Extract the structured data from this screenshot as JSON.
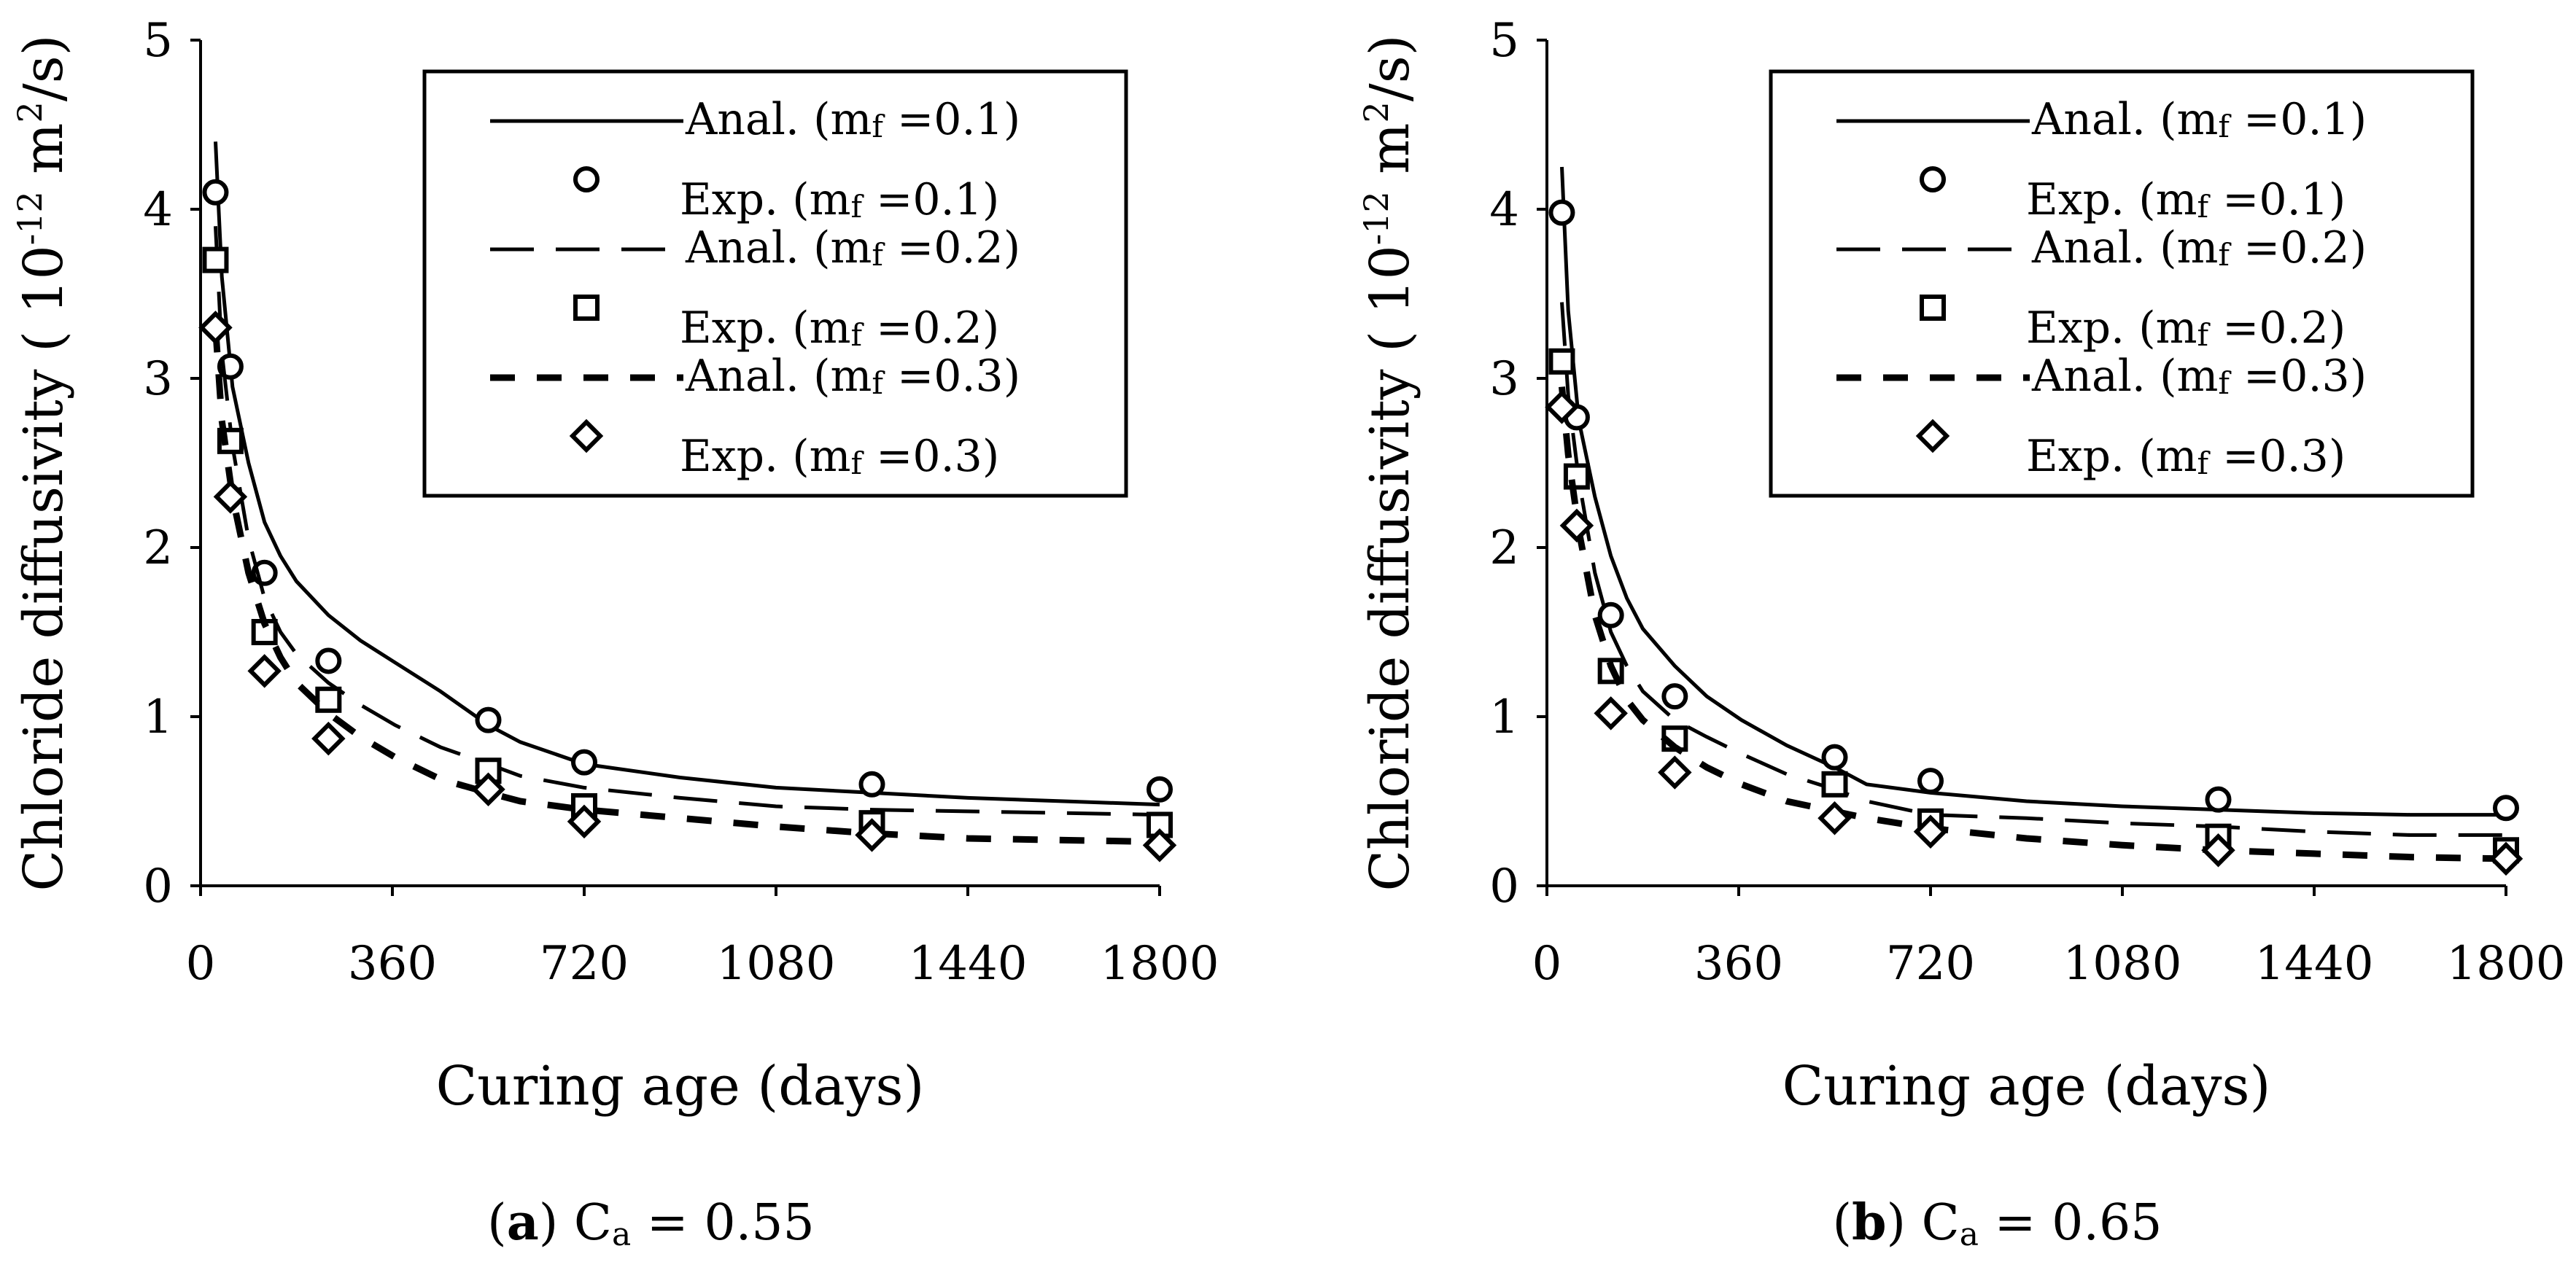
{
  "colors": {
    "ink": "#000000",
    "background": "#ffffff"
  },
  "chart_data": [
    {
      "type": "line",
      "title": "",
      "caption": {
        "letter": "a",
        "prefix": "(",
        "close": ")",
        "text": " C",
        "sub": "a",
        "value": " = 0.55"
      },
      "xlabel": "Curing age (days)",
      "ylabel_main": "Chloride diffusivity (",
      "ylabel_unit_10": "10",
      "ylabel_unit_exp": "-12",
      "ylabel_unit_m": " m",
      "ylabel_unit_sq": "2",
      "ylabel_unit_end": "/s)",
      "xlim": [
        0,
        1800
      ],
      "ylim": [
        0,
        5
      ],
      "xticks": [
        0,
        360,
        720,
        1080,
        1440,
        1800
      ],
      "yticks": [
        0,
        1,
        2,
        3,
        4,
        5
      ],
      "legend_position": "top-right",
      "series": [
        {
          "name": "Anal. (mf =0.1)",
          "label_main": "Anal. (m",
          "label_sub": "f",
          "label_end": " =0.1)",
          "kind": "line",
          "dash": "solid",
          "x": [
            28,
            40,
            60,
            90,
            120,
            150,
            180,
            240,
            300,
            365,
            450,
            540,
            600,
            720,
            900,
            1080,
            1260,
            1440,
            1620,
            1800
          ],
          "y": [
            4.4,
            3.6,
            2.95,
            2.5,
            2.15,
            1.95,
            1.8,
            1.6,
            1.45,
            1.32,
            1.15,
            0.95,
            0.85,
            0.72,
            0.64,
            0.58,
            0.55,
            0.52,
            0.5,
            0.48
          ]
        },
        {
          "name": "Exp. (mf =0.1)",
          "label_main": "Exp. (m",
          "label_sub": "f",
          "label_end": " =0.1)",
          "kind": "marker",
          "marker": "circle",
          "x": [
            28,
            56,
            120,
            240,
            540,
            720,
            1260,
            1800
          ],
          "y": [
            4.1,
            3.07,
            1.85,
            1.33,
            0.98,
            0.73,
            0.6,
            0.57
          ]
        },
        {
          "name": "Anal. (mf =0.2)",
          "label_main": "Anal. (m",
          "label_sub": "f",
          "label_end": " =0.2)",
          "kind": "line",
          "dash": "long",
          "x": [
            28,
            40,
            60,
            90,
            120,
            150,
            180,
            240,
            300,
            365,
            450,
            540,
            600,
            720,
            900,
            1080,
            1260,
            1440,
            1620,
            1800
          ],
          "y": [
            3.9,
            3.15,
            2.6,
            2.05,
            1.7,
            1.5,
            1.37,
            1.2,
            1.07,
            0.95,
            0.82,
            0.72,
            0.65,
            0.58,
            0.52,
            0.47,
            0.45,
            0.44,
            0.43,
            0.42
          ]
        },
        {
          "name": "Exp. (mf =0.2)",
          "label_main": "Exp. (m",
          "label_sub": "f",
          "label_end": " =0.2)",
          "kind": "marker",
          "marker": "square",
          "x": [
            28,
            56,
            120,
            240,
            540,
            720,
            1260,
            1800
          ],
          "y": [
            3.7,
            2.63,
            1.5,
            1.1,
            0.68,
            0.47,
            0.37,
            0.36
          ]
        },
        {
          "name": "Anal. (mf =0.3)",
          "label_main": "Anal. (m",
          "label_sub": "f",
          "label_end": " =0.3)",
          "kind": "line",
          "dash": "short",
          "x": [
            28,
            40,
            60,
            90,
            120,
            150,
            180,
            240,
            300,
            365,
            450,
            540,
            600,
            720,
            900,
            1080,
            1260,
            1440,
            1620,
            1800
          ],
          "y": [
            3.3,
            2.75,
            2.3,
            1.85,
            1.55,
            1.35,
            1.2,
            1.02,
            0.88,
            0.76,
            0.63,
            0.55,
            0.5,
            0.45,
            0.4,
            0.35,
            0.31,
            0.28,
            0.27,
            0.26
          ]
        },
        {
          "name": "Exp. (mf =0.3)",
          "label_main": "Exp. (m",
          "label_sub": "f",
          "label_end": " =0.3)",
          "kind": "marker",
          "marker": "diamond",
          "x": [
            28,
            56,
            120,
            240,
            540,
            720,
            1260,
            1800
          ],
          "y": [
            3.3,
            2.3,
            1.27,
            0.87,
            0.57,
            0.38,
            0.3,
            0.24
          ]
        }
      ]
    },
    {
      "type": "line",
      "title": "",
      "caption": {
        "letter": "b",
        "prefix": "(",
        "close": ")",
        "text": " C",
        "sub": "a",
        "value": " = 0.65"
      },
      "xlabel": "Curing age (days)",
      "ylabel_main": "Chloride diffusivity (",
      "ylabel_unit_10": "10",
      "ylabel_unit_exp": "-12",
      "ylabel_unit_m": " m",
      "ylabel_unit_sq": "2",
      "ylabel_unit_end": "/s)",
      "xlim": [
        0,
        1800
      ],
      "ylim": [
        0,
        5
      ],
      "xticks": [
        0,
        360,
        720,
        1080,
        1440,
        1800
      ],
      "yticks": [
        0,
        1,
        2,
        3,
        4,
        5
      ],
      "legend_position": "top-right",
      "series": [
        {
          "name": "Anal. (mf =0.1)",
          "label_main": "Anal. (m",
          "label_sub": "f",
          "label_end": " =0.1)",
          "kind": "line",
          "dash": "solid",
          "x": [
            28,
            40,
            60,
            90,
            120,
            150,
            180,
            240,
            300,
            365,
            450,
            540,
            600,
            720,
            900,
            1080,
            1260,
            1440,
            1620,
            1800
          ],
          "y": [
            4.25,
            3.4,
            2.75,
            2.3,
            1.95,
            1.7,
            1.52,
            1.3,
            1.12,
            0.98,
            0.83,
            0.7,
            0.6,
            0.55,
            0.5,
            0.47,
            0.45,
            0.43,
            0.42,
            0.42
          ]
        },
        {
          "name": "Exp. (mf =0.1)",
          "label_main": "Exp. (m",
          "label_sub": "f",
          "label_end": " =0.1)",
          "kind": "marker",
          "marker": "circle",
          "x": [
            28,
            56,
            120,
            240,
            540,
            720,
            1260,
            1800
          ],
          "y": [
            3.98,
            2.77,
            1.6,
            1.12,
            0.76,
            0.62,
            0.51,
            0.46
          ]
        },
        {
          "name": "Anal. (mf =0.2)",
          "label_main": "Anal. (m",
          "label_sub": "f",
          "label_end": " =0.2)",
          "kind": "line",
          "dash": "long",
          "x": [
            28,
            40,
            60,
            90,
            120,
            150,
            180,
            240,
            300,
            365,
            450,
            540,
            600,
            720,
            900,
            1080,
            1260,
            1440,
            1620,
            1800
          ],
          "y": [
            3.45,
            2.9,
            2.4,
            1.85,
            1.5,
            1.3,
            1.15,
            0.98,
            0.88,
            0.78,
            0.66,
            0.57,
            0.5,
            0.42,
            0.4,
            0.37,
            0.35,
            0.32,
            0.3,
            0.3
          ]
        },
        {
          "name": "Exp. (mf =0.2)",
          "label_main": "Exp. (m",
          "label_sub": "f",
          "label_end": " =0.2)",
          "kind": "marker",
          "marker": "square",
          "x": [
            28,
            56,
            120,
            240,
            540,
            720,
            1260,
            1800
          ],
          "y": [
            3.1,
            2.42,
            1.27,
            0.87,
            0.6,
            0.38,
            0.29,
            0.21
          ]
        },
        {
          "name": "Anal. (mf =0.3)",
          "label_main": "Anal. (m",
          "label_sub": "f",
          "label_end": " =0.3)",
          "kind": "line",
          "dash": "short",
          "x": [
            28,
            40,
            60,
            90,
            120,
            150,
            180,
            240,
            300,
            365,
            450,
            540,
            600,
            720,
            900,
            1080,
            1260,
            1440,
            1620,
            1800
          ],
          "y": [
            2.95,
            2.55,
            2.1,
            1.6,
            1.3,
            1.1,
            0.98,
            0.82,
            0.7,
            0.6,
            0.5,
            0.44,
            0.4,
            0.34,
            0.28,
            0.24,
            0.21,
            0.19,
            0.17,
            0.16
          ]
        },
        {
          "name": "Exp. (mf =0.3)",
          "label_main": "Exp. (m",
          "label_sub": "f",
          "label_end": " =0.3)",
          "kind": "marker",
          "marker": "diamond",
          "x": [
            28,
            56,
            120,
            240,
            540,
            720,
            1260,
            1800
          ],
          "y": [
            2.83,
            2.13,
            1.02,
            0.67,
            0.4,
            0.32,
            0.21,
            0.16
          ]
        }
      ]
    }
  ]
}
